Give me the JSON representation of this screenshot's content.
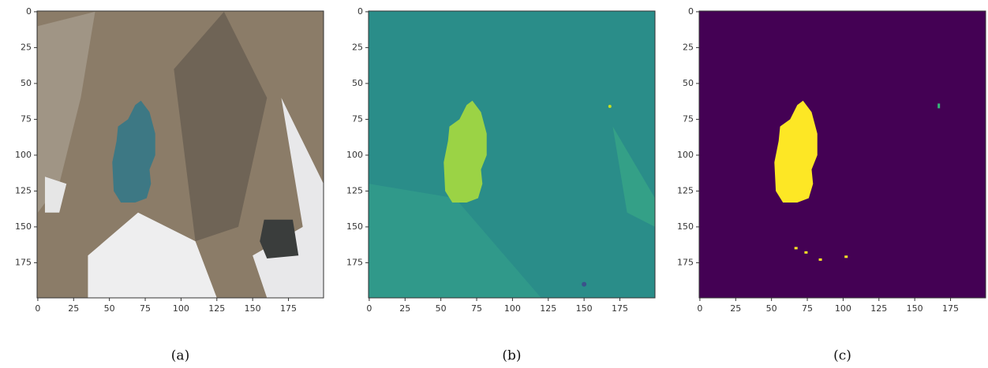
{
  "chart_data": [
    {
      "type": "image",
      "caption": "(a)",
      "xlim": [
        -0.5,
        199.5
      ],
      "ylim": [
        199.5,
        -0.5
      ],
      "xticks": [
        0,
        25,
        50,
        75,
        100,
        125,
        150,
        175
      ],
      "yticks": [
        0,
        25,
        50,
        75,
        100,
        125,
        150,
        175
      ]
    },
    {
      "type": "image",
      "caption": "(b)",
      "xlim": [
        -0.5,
        199.5
      ],
      "ylim": [
        199.5,
        -0.5
      ],
      "xticks": [
        0,
        25,
        50,
        75,
        100,
        125,
        150,
        175
      ],
      "yticks": [
        0,
        25,
        50,
        75,
        100,
        125,
        150,
        175
      ]
    },
    {
      "type": "image",
      "caption": "(c)",
      "xlim": [
        -0.5,
        199.5
      ],
      "ylim": [
        199.5,
        -0.5
      ],
      "xticks": [
        0,
        25,
        50,
        75,
        100,
        125,
        150,
        175
      ],
      "yticks": [
        0,
        25,
        50,
        75,
        100,
        125,
        150,
        175
      ]
    }
  ]
}
